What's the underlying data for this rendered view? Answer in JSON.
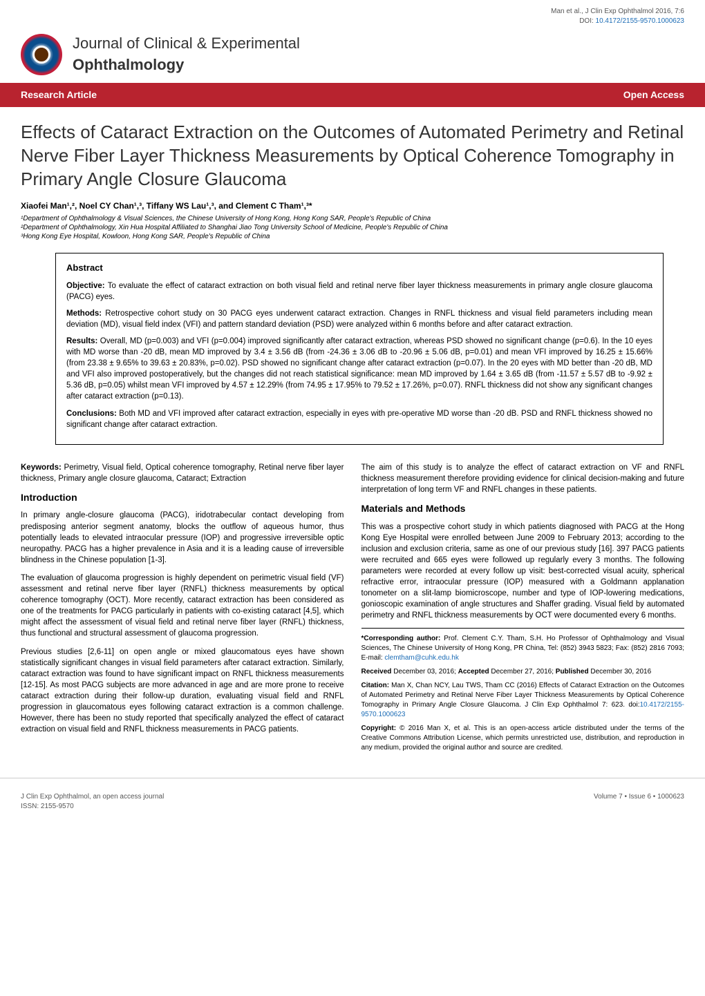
{
  "header": {
    "issn_line": "Journal of Clinical & Experimental",
    "journal_bold": "Ophthalmology",
    "citation": "Man et al., J Clin Exp Ophthalmol 2016, 7:6",
    "doi_label": "DOI: ",
    "doi": "10.4172/2155-9570.1000623"
  },
  "bar": {
    "left": "Research Article",
    "right": "Open Access"
  },
  "title": "Effects of Cataract Extraction on the Outcomes of Automated Perimetry and Retinal Nerve Fiber Layer Thickness Measurements by Optical Coherence Tomography in Primary Angle Closure Glaucoma",
  "authors": "Xiaofei Man¹,², Noel CY Chan¹,³, Tiffany WS Lau¹,³, and Clement C Tham¹,³*",
  "affiliations": {
    "a1": "¹Department of Ophthalmology & Visual Sciences, the Chinese University of Hong Kong, Hong Kong SAR, People's Republic of China",
    "a2": "²Department of Ophthalmology, Xin Hua Hospital Affiliated to Shanghai Jiao Tong University School of Medicine, People's Republic of China",
    "a3": "³Hong Kong Eye Hospital, Kowloon, Hong Kong SAR, People's Republic of China"
  },
  "abstract": {
    "heading": "Abstract",
    "objective_label": "Objective: ",
    "objective": "To evaluate the effect of cataract extraction on both visual field and retinal nerve fiber layer thickness measurements in primary angle closure glaucoma (PACG) eyes.",
    "methods_label": "Methods: ",
    "methods": "Retrospective cohort study on 30 PACG eyes underwent cataract extraction. Changes in RNFL thickness and visual field parameters including mean deviation (MD), visual field index (VFI) and pattern standard deviation (PSD) were analyzed within 6 months before and after cataract extraction.",
    "results_label": "Results: ",
    "results": "Overall, MD (p=0.003) and VFI (p=0.004) improved significantly after cataract extraction, whereas PSD showed no significant change (p=0.6). In the 10 eyes with MD worse than -20 dB, mean MD improved by 3.4 ± 3.56 dB (from -24.36 ± 3.06 dB to -20.96 ± 5.06 dB, p=0.01) and mean VFI improved by 16.25 ± 15.66% (from 23.38 ± 9.65% to 39.63 ± 20.83%, p=0.02). PSD showed no significant change after cataract extraction (p=0.07). In the 20 eyes with MD better than -20 dB, MD and VFI also improved postoperatively, but the changes did not reach statistical significance: mean MD improved by 1.64 ± 3.65 dB (from -11.57 ± 5.57 dB to -9.92 ± 5.36 dB, p=0.05) whilst mean VFI improved by 4.57 ± 12.29% (from 74.95 ± 17.95% to 79.52 ± 17.26%, p=0.07). RNFL thickness did not show any significant changes after cataract extraction (p=0.13).",
    "conclusions_label": "Conclusions: ",
    "conclusions": "Both MD and VFI improved after cataract extraction, especially in eyes with pre-operative MD worse than -20 dB. PSD and RNFL thickness showed no significant change after cataract extraction."
  },
  "keywords": {
    "label": "Keywords: ",
    "text": "Perimetry, Visual field, Optical coherence tomography, Retinal nerve fiber layer thickness, Primary angle closure glaucoma, Cataract; Extraction"
  },
  "introduction": {
    "heading": "Introduction",
    "p1": "In primary angle-closure glaucoma (PACG), iridotrabecular contact developing from predisposing anterior segment anatomy, blocks the outflow of aqueous humor, thus potentially leads to elevated intraocular pressure (IOP) and progressive irreversible optic neuropathy. PACG has a higher prevalence in Asia and it is a leading cause of irreversible blindness in the Chinese population [1-3].",
    "p2": "The evaluation of glaucoma progression is highly dependent on perimetric visual field (VF) assessment and retinal nerve fiber layer (RNFL) thickness measurements by optical coherence tomography (OCT). More recently, cataract extraction has been considered as one of the treatments for PACG particularly in patients with co-existing cataract [4,5], which might affect the assessment of visual field and retinal nerve fiber layer (RNFL) thickness, thus functional and structural assessment of glaucoma progression.",
    "p3": "Previous studies [2,6-11] on open angle or mixed glaucomatous eyes have shown statistically significant changes in visual field parameters after cataract extraction. Similarly, cataract extraction was found to have significant impact on RNFL thickness measurements [12-15]. As most PACG subjects are more advanced in age and are more prone to receive cataract extraction during their follow-up duration, evaluating visual field and RNFL progression in glaucomatous eyes following cataract extraction is a common challenge. However, there has been no study reported that specifically analyzed the effect of cataract extraction on visual field and RNFL thickness measurements in PACG patients."
  },
  "right_intro": "The aim of this study is to analyze the effect of cataract extraction on VF and RNFL thickness measurement therefore providing evidence for clinical decision-making and future interpretation of long term VF and RNFL changes in these patients.",
  "materials": {
    "heading": "Materials and Methods",
    "p1": "This was a prospective cohort study in which patients diagnosed with PACG at the Hong Kong Eye Hospital were enrolled between June 2009 to February 2013; according to the inclusion and exclusion criteria, same as one of our previous study [16]. 397 PACG patients were recruited and 665 eyes were followed up regularly every 3 months. The following parameters were recorded at every follow up visit: best-corrected visual acuity, spherical refractive error, intraocular pressure (IOP) measured with a Goldmann applanation tonometer on a slit-lamp biomicroscope, number and type of IOP-lowering medications, gonioscopic examination of angle structures and Shaffer grading. Visual field by automated perimetry and RNFL thickness measurements by OCT were documented every 6 months."
  },
  "corresponding": {
    "label": "*Corresponding author: ",
    "text": "Prof. Clement C.Y. Tham, S.H. Ho Professor of Ophthalmology and Visual Sciences, The Chinese University of Hong Kong, PR China, Tel: (852) 3943 5823; Fax: (852) 2816 7093; E-mail: ",
    "email": "clemtham@cuhk.edu.hk"
  },
  "received": {
    "received_label": "Received ",
    "received_date": "December 03, 2016; ",
    "accepted_label": "Accepted ",
    "accepted_date": "December 27, 2016; ",
    "published_label": "Published ",
    "published_date": "December 30, 2016"
  },
  "citation_box": {
    "label": "Citation: ",
    "text": "Man X, Chan NCY, Lau TWS, Tham CC (2016) Effects of Cataract Extraction on the Outcomes of Automated Perimetry and Retinal Nerve Fiber Layer Thickness Measurements by Optical Coherence Tomography in Primary Angle Closure Glaucoma. J Clin Exp Ophthalmol 7: 623. doi:",
    "doi": "10.4172/2155-9570.1000623"
  },
  "copyright": {
    "label": "Copyright: ",
    "text": "© 2016 Man X, et al. This is an open-access article distributed under the terms of the Creative Commons Attribution License, which permits unrestricted use, distribution, and reproduction in any medium, provided the original author and source are credited."
  },
  "footer": {
    "left1": "J Clin Exp Ophthalmol, an open access journal",
    "left2": "ISSN: 2155-9570",
    "right": "Volume 7 • Issue 6 • 1000623"
  }
}
